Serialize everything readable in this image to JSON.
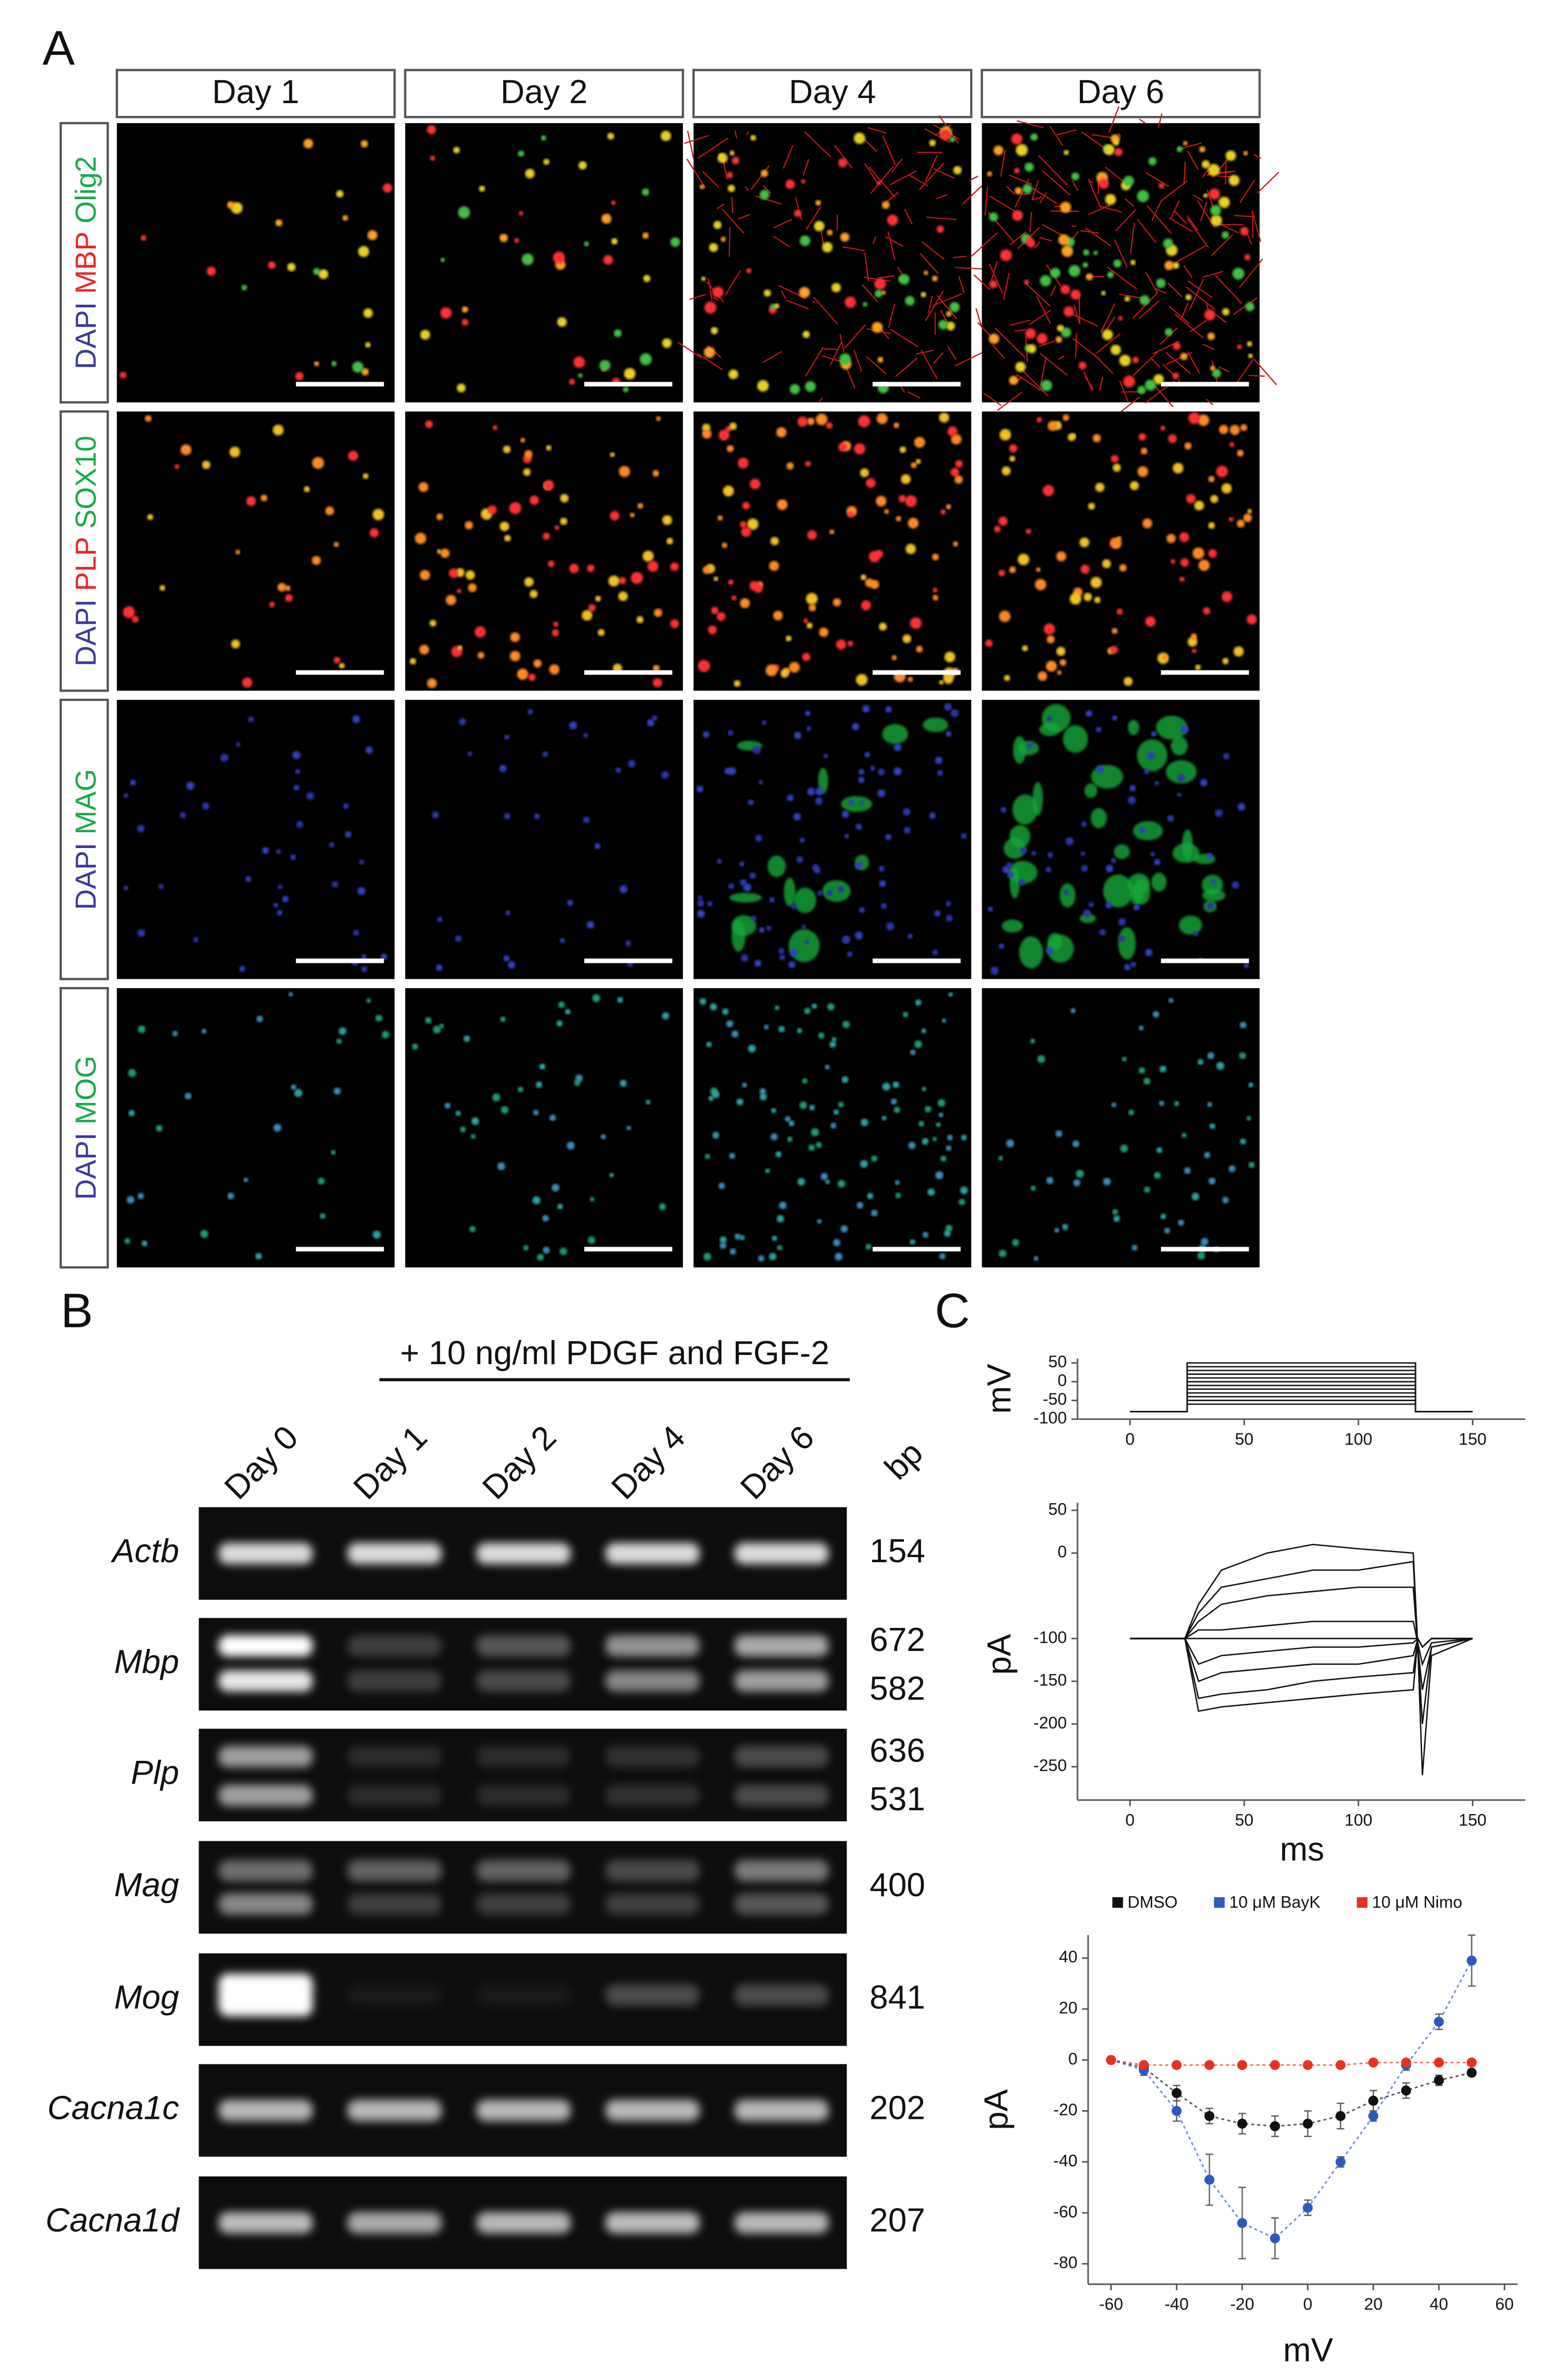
{
  "panel_a": {
    "label": "A",
    "columns": [
      "Day 1",
      "Day 2",
      "Day 4",
      "Day 6"
    ],
    "rows": [
      {
        "labels": [
          {
            "text": "DAPI",
            "color": "#3a3a9c"
          },
          {
            "text": "MBP",
            "color": "#e8262a"
          },
          {
            "text": "Olig2",
            "color": "#1aa84b"
          }
        ]
      },
      {
        "labels": [
          {
            "text": "DAPI",
            "color": "#3a3a9c"
          },
          {
            "text": "PLP",
            "color": "#e8262a"
          },
          {
            "text": "SOX10",
            "color": "#1aa84b"
          }
        ]
      },
      {
        "labels": [
          {
            "text": "DAPI",
            "color": "#3a3a9c"
          },
          {
            "text": "MAG",
            "color": "#1aa84b"
          }
        ]
      },
      {
        "labels": [
          {
            "text": "DAPI",
            "color": "#3a3a9c"
          },
          {
            "text": "MOG",
            "color": "#1aa84b"
          }
        ]
      }
    ]
  },
  "panel_b": {
    "label": "B",
    "treatment": "+ 10 ng/ml PDGF and FGF-2",
    "lanes": [
      "Day 0",
      "Day 1",
      "Day 2",
      "Day 4",
      "Day 6"
    ],
    "unit": "bp",
    "genes": [
      {
        "name": "Actb",
        "sizes": [
          "154"
        ]
      },
      {
        "name": "Mbp",
        "sizes": [
          "672",
          "582"
        ]
      },
      {
        "name": "Plp",
        "sizes": [
          "636",
          "531"
        ]
      },
      {
        "name": "Mag",
        "sizes": [
          "400"
        ]
      },
      {
        "name": "Mog",
        "sizes": [
          "841"
        ]
      },
      {
        "name": "Cacna1c",
        "sizes": [
          "202"
        ]
      },
      {
        "name": "Cacna1d",
        "sizes": [
          "207"
        ]
      }
    ]
  },
  "panel_c_label": "C",
  "chart_data": [
    {
      "type": "line",
      "ylabel": "mV",
      "color": "#111111",
      "x": [
        0,
        25,
        25,
        125,
        125,
        150
      ],
      "xlim": [
        -23,
        173
      ],
      "ylim": [
        -100,
        62
      ],
      "xticks": [
        0,
        50,
        100,
        150
      ],
      "yticks": [
        50,
        0,
        -50,
        -100
      ],
      "series": [
        {
          "values": [
            -80,
            -80,
            -60,
            -60,
            -80,
            -80
          ]
        },
        {
          "values": [
            -80,
            -80,
            -50,
            -50,
            -80,
            -80
          ]
        },
        {
          "values": [
            -80,
            -80,
            -40,
            -40,
            -80,
            -80
          ]
        },
        {
          "values": [
            -80,
            -80,
            -30,
            -30,
            -80,
            -80
          ]
        },
        {
          "values": [
            -80,
            -80,
            -20,
            -20,
            -80,
            -80
          ]
        },
        {
          "values": [
            -80,
            -80,
            -10,
            -10,
            -80,
            -80
          ]
        },
        {
          "values": [
            -80,
            -80,
            0,
            0,
            -80,
            -80
          ]
        },
        {
          "values": [
            -80,
            -80,
            10,
            10,
            -80,
            -80
          ]
        },
        {
          "values": [
            -80,
            -80,
            20,
            20,
            -80,
            -80
          ]
        },
        {
          "values": [
            -80,
            -80,
            30,
            30,
            -80,
            -80
          ]
        },
        {
          "values": [
            -80,
            -80,
            40,
            40,
            -80,
            -80
          ]
        },
        {
          "values": [
            -80,
            -80,
            50,
            50,
            -80,
            -80
          ]
        }
      ]
    },
    {
      "type": "line",
      "ylabel": "pA",
      "xlabel": "ms",
      "color": "#111111",
      "x": [
        0,
        24,
        30,
        40,
        60,
        80,
        100,
        124,
        126,
        128,
        132,
        150
      ],
      "xlim": [
        -23,
        173
      ],
      "ylim": [
        -289,
        59
      ],
      "xticks": [
        0,
        50,
        100,
        150
      ],
      "yticks": [
        50,
        0,
        -100,
        -150,
        -200,
        -250
      ],
      "series": [
        {
          "values": [
            -100,
            -100,
            -60,
            -20,
            0,
            10,
            5,
            0,
            -110,
            -260,
            -120,
            -100
          ]
        },
        {
          "values": [
            -100,
            -100,
            -70,
            -40,
            -30,
            -20,
            -20,
            -10,
            -110,
            -200,
            -110,
            -100
          ]
        },
        {
          "values": [
            -100,
            -100,
            -80,
            -60,
            -50,
            -45,
            -40,
            -40,
            -110,
            -160,
            -110,
            -100
          ]
        },
        {
          "values": [
            -100,
            -100,
            -90,
            -90,
            -85,
            -80,
            -80,
            -80,
            -105,
            -130,
            -105,
            -100
          ]
        },
        {
          "values": [
            -100,
            -100,
            -100,
            -100,
            -100,
            -100,
            -100,
            -100,
            -100,
            -110,
            -100,
            -100
          ]
        },
        {
          "values": [
            -100,
            -100,
            -130,
            -120,
            -115,
            -110,
            -110,
            -105,
            -100,
            -110,
            -100,
            -100
          ]
        },
        {
          "values": [
            -100,
            -100,
            -150,
            -140,
            -135,
            -130,
            -130,
            -120,
            -100,
            -110,
            -100,
            -100
          ]
        },
        {
          "values": [
            -100,
            -100,
            -170,
            -165,
            -160,
            -150,
            -145,
            -140,
            -100,
            -110,
            -100,
            -100
          ]
        },
        {
          "values": [
            -100,
            -100,
            -185,
            -180,
            -175,
            -170,
            -165,
            -160,
            -100,
            -110,
            -100,
            -100
          ]
        }
      ]
    },
    {
      "type": "scatter",
      "ylabel": "pA",
      "xlabel": "mV",
      "legend": "top",
      "x": [
        -60,
        -50,
        -40,
        -30,
        -20,
        -10,
        0,
        10,
        20,
        30,
        40,
        50
      ],
      "xlim": [
        -67,
        64
      ],
      "ylim": [
        -88,
        49
      ],
      "xticks": [
        -60,
        -40,
        -20,
        0,
        20,
        40,
        60
      ],
      "yticks": [
        40,
        20,
        0,
        -20,
        -40,
        -60,
        -80
      ],
      "series": [
        {
          "name": "DMSO",
          "color": "#111111",
          "values": [
            0,
            -3,
            -13,
            -22,
            -25,
            -26,
            -25,
            -22,
            -16,
            -12,
            -8,
            -5
          ],
          "errors": [
            0,
            1,
            3,
            3,
            4,
            4,
            5,
            5,
            4,
            3,
            2,
            1
          ]
        },
        {
          "name": "10 μM BayK",
          "color": "#2a5bc4",
          "values": [
            0,
            -4,
            -20,
            -47,
            -64,
            -70,
            -58,
            -40,
            -22,
            -2,
            15,
            39
          ],
          "errors": [
            0,
            2,
            4,
            10,
            14,
            8,
            3,
            2,
            2,
            2,
            3,
            10
          ]
        },
        {
          "name": "10 μM Nimo",
          "color": "#e8321e",
          "values": [
            0,
            -2,
            -2,
            -2,
            -2,
            -2,
            -2,
            -2,
            -1,
            -1,
            -1,
            -1
          ],
          "errors": [
            0,
            1,
            1,
            1,
            1,
            1,
            1,
            1,
            1,
            1,
            1,
            1
          ]
        }
      ]
    }
  ]
}
